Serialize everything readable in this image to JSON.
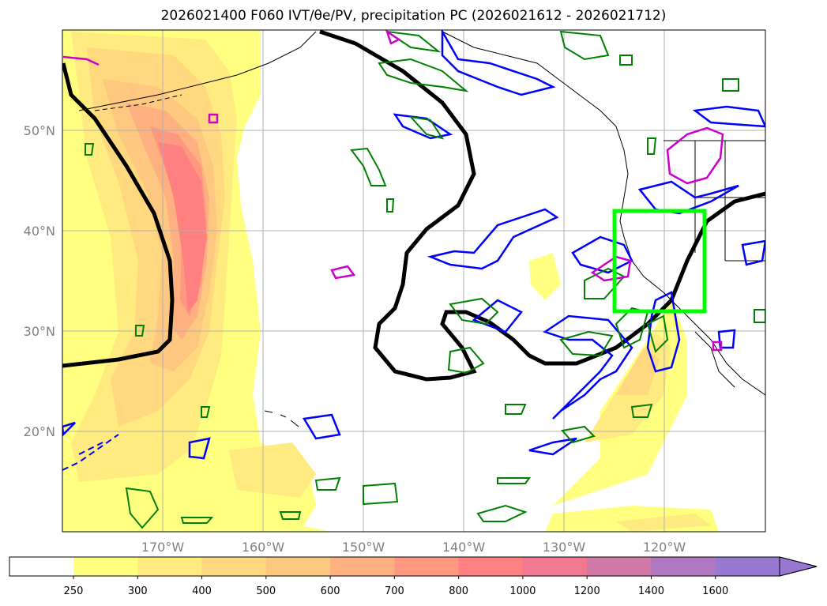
{
  "title": "2026021400 F060 IVT/θe/PV, precipitation PC (2026021612 - 2026021712)",
  "map": {
    "lat_labels": [
      "50°N",
      "40°N",
      "30°N",
      "20°N"
    ],
    "lon_labels": [
      "170°W",
      "160°W",
      "150°W",
      "140°W",
      "130°W",
      "120°W"
    ]
  },
  "colorbar": {
    "tick_labels": [
      "250",
      "300",
      "400",
      "500",
      "600",
      "700",
      "800",
      "1000",
      "1200",
      "1400",
      "1600"
    ],
    "colors": [
      "#ffff80",
      "#ffeb80",
      "#ffd880",
      "#ffc880",
      "#ffb080",
      "#ff9880",
      "#ff8080",
      "#f07890",
      "#d078a8",
      "#b078c0",
      "#9878d0"
    ],
    "extend": "max"
  },
  "colors": {
    "theta_e_contour": "#000000",
    "ivt_contour": "#0000ff",
    "pv_contour": "#008000",
    "pv_high_contour": "#cc00cc",
    "focus_box": "#00ff00"
  }
}
